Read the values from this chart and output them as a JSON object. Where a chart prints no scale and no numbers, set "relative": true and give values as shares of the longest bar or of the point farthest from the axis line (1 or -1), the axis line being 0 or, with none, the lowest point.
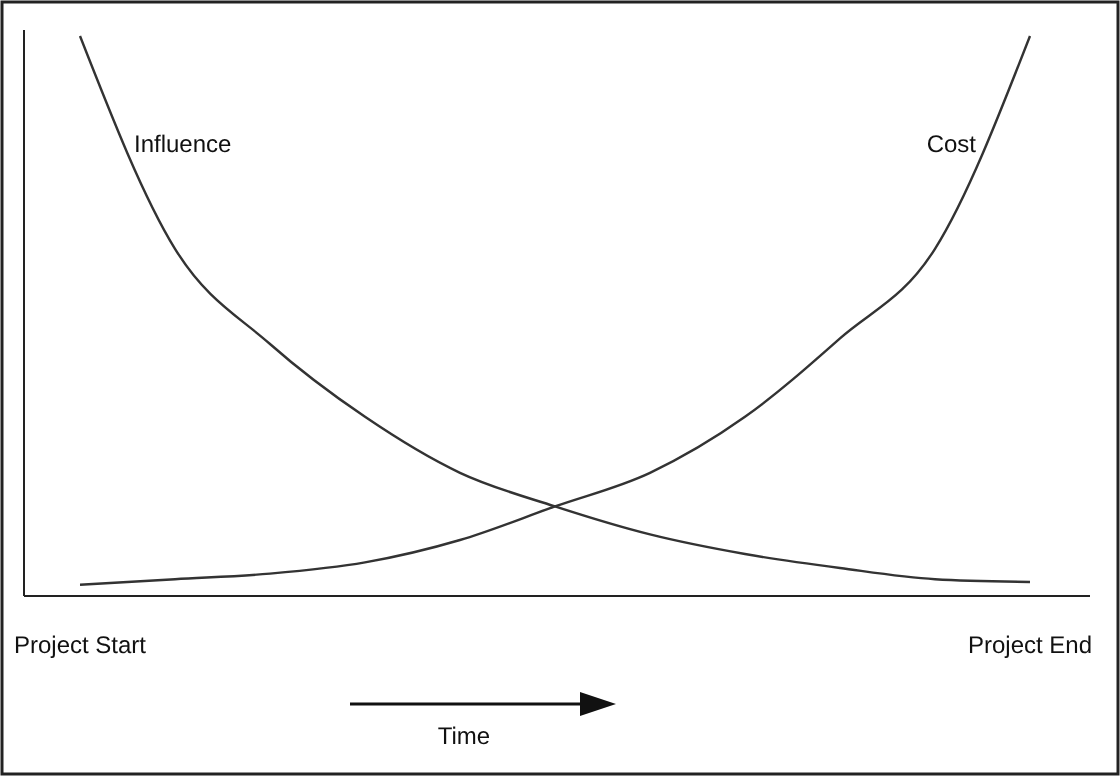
{
  "chart_data": {
    "type": "line",
    "relative": true,
    "xlabel": "Time",
    "categories": [
      "Project Start",
      null,
      null,
      null,
      null,
      null,
      null,
      null,
      null,
      null,
      "Project End"
    ],
    "series": [
      {
        "name": "Influence",
        "color": "#333333",
        "values": [
          1,
          0.62,
          0.45,
          0.32,
          0.22,
          0.16,
          0.11,
          0.075,
          0.05,
          0.03,
          0.025
        ]
      },
      {
        "name": "Cost",
        "color": "#333333",
        "values": [
          0.02,
          0.03,
          0.04,
          0.06,
          0.1,
          0.16,
          0.22,
          0.32,
          0.46,
          0.62,
          1
        ]
      }
    ],
    "legend": false,
    "grid": false,
    "marker": "none",
    "line_style": "solid"
  }
}
